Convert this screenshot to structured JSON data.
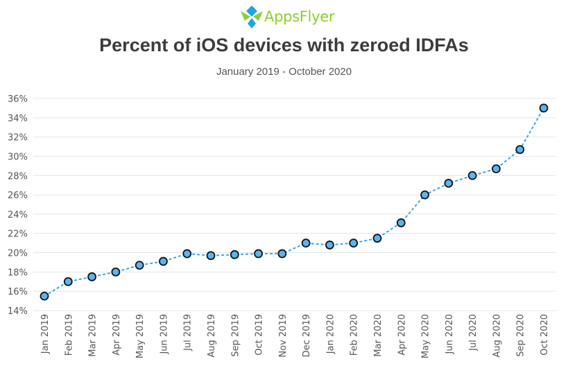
{
  "brand": {
    "name": "AppsFlyer"
  },
  "chart_data": {
    "type": "line",
    "title": "Percent of iOS devices with zeroed IDFAs",
    "subtitle": "January 2019 - October 2020",
    "categories": [
      "Jan 2019",
      "Feb 2019",
      "Mar 2019",
      "Apr 2019",
      "May 2019",
      "Jun 2019",
      "Jul 2019",
      "Aug 2019",
      "Sep 2019",
      "Oct 2019",
      "Nov 2019",
      "Dec 2019",
      "Jan 2020",
      "Feb 2020",
      "Mar 2020",
      "Apr 2020",
      "May 2020",
      "Jun 2020",
      "Jul 2020",
      "Aug 2020",
      "Sep 2020",
      "Oct 2020"
    ],
    "series": [
      {
        "values": [
          15.5,
          17.0,
          17.5,
          18.0,
          18.7,
          19.1,
          19.9,
          19.7,
          19.8,
          19.9,
          19.9,
          21.0,
          20.8,
          21.0,
          21.5,
          23.1,
          26.0,
          27.2,
          28.0,
          28.7,
          30.7,
          35.0
        ]
      }
    ],
    "yticks": [
      "14%",
      "16%",
      "18%",
      "20%",
      "22%",
      "24%",
      "26%",
      "28%",
      "30%",
      "32%",
      "34%",
      "36%"
    ],
    "ylim": [
      14,
      36
    ],
    "ystep": 2,
    "grid": true,
    "line_color": "#3aa8e4",
    "marker_fill": "#5ab4f0",
    "marker_stroke": "#111111",
    "grid_color": "#e4e4e4"
  }
}
